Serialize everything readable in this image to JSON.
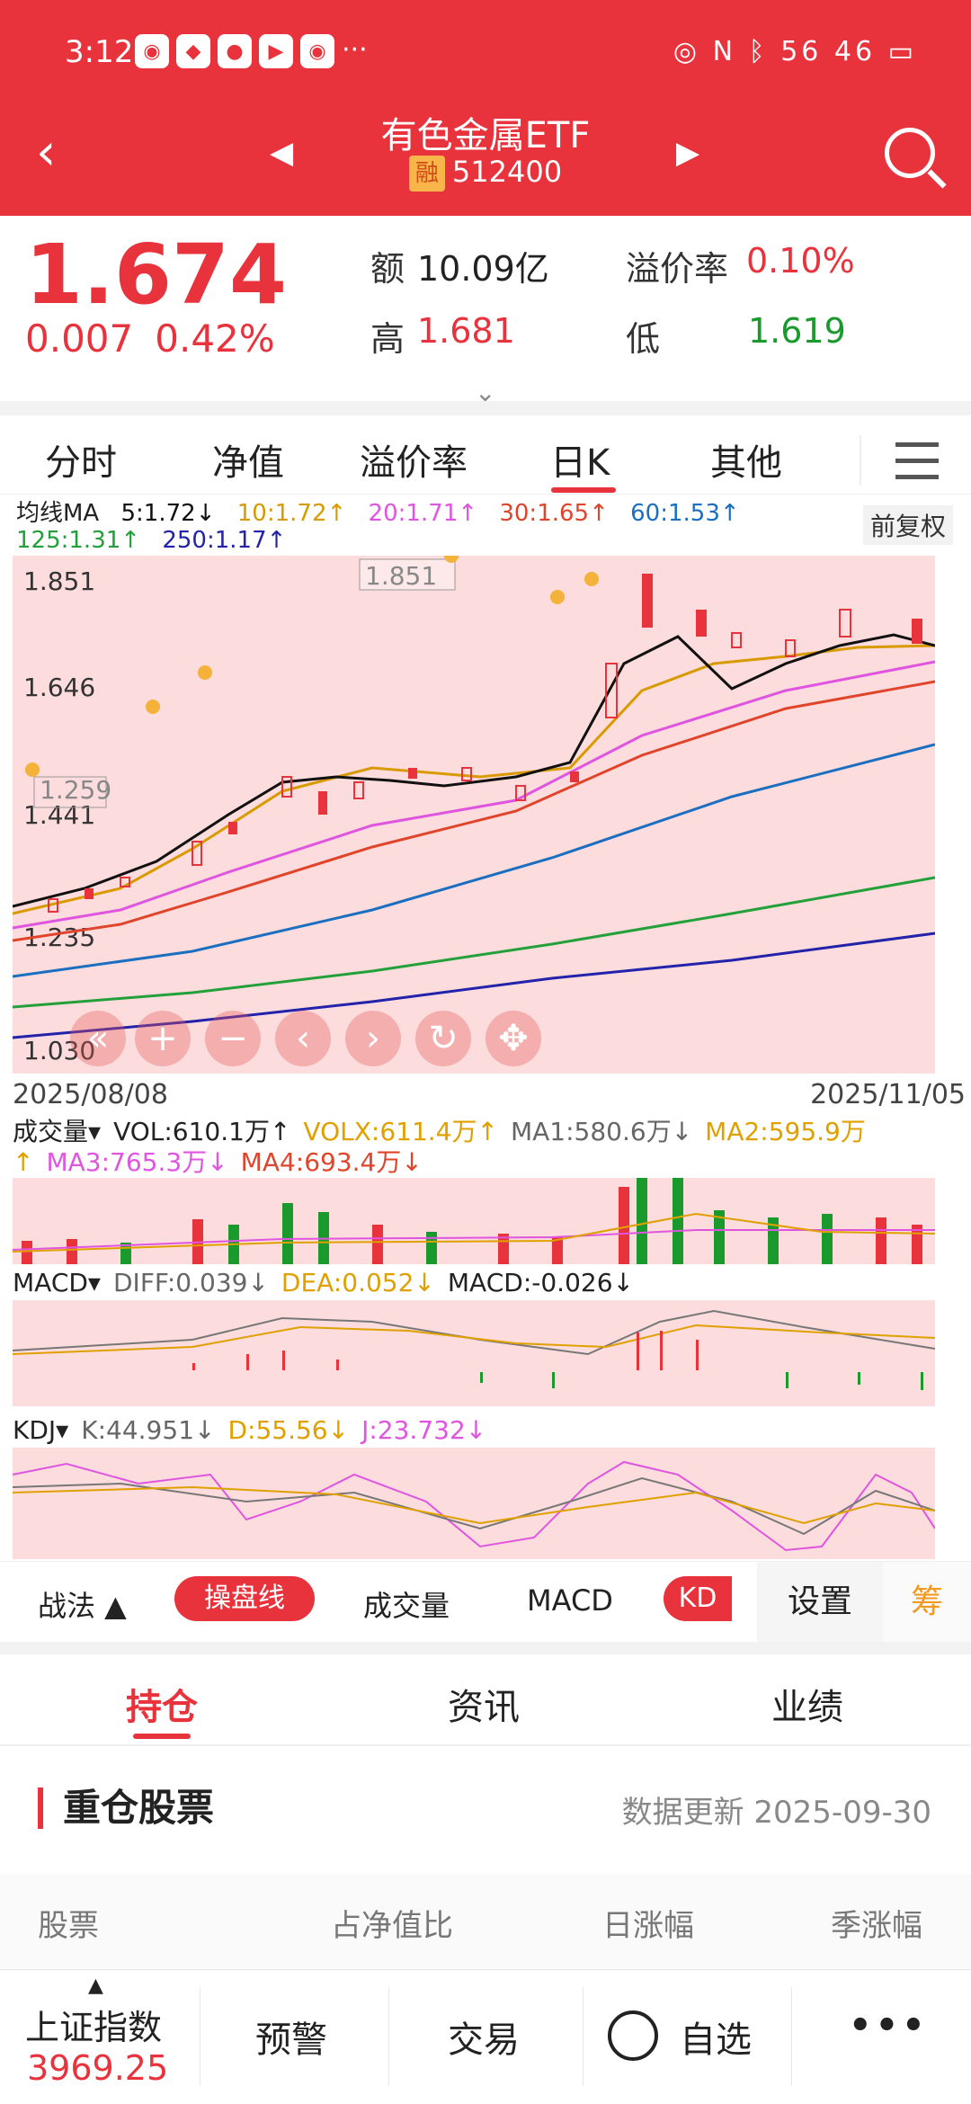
{
  "status": {
    "time": "3:12",
    "right": "56 46",
    "more": "···"
  },
  "header": {
    "title": "有色金属ETF",
    "tag": "融",
    "code": "512400"
  },
  "quote": {
    "price": "1.674",
    "change": "0.007",
    "change_pct": "0.42%",
    "amount_label": "额",
    "amount": "10.09亿",
    "premium_label": "溢价率",
    "premium": "0.10%",
    "high_label": "高",
    "high": "1.681",
    "low_label": "低",
    "low": "1.619"
  },
  "chart_tabs": [
    "分时",
    "净值",
    "溢价率",
    "日K",
    "其他"
  ],
  "ma_legend": {
    "title": "均线MA",
    "items": [
      {
        "text": "5:1.72↓",
        "color": "#111111"
      },
      {
        "text": "10:1.72↑",
        "color": "#d99a00"
      },
      {
        "text": "20:1.71↑",
        "color": "#e055e0"
      },
      {
        "text": "30:1.65↑",
        "color": "#e0452c"
      },
      {
        "text": "60:1.53↑",
        "color": "#1b6fc1"
      },
      {
        "text": "125:1.31↑",
        "color": "#22a03a"
      },
      {
        "text": "250:1.17↑",
        "color": "#2222aa"
      }
    ],
    "adjust_label": "前复权"
  },
  "kchart": {
    "y_labels": [
      "1.851",
      "1.646",
      "1.441",
      "1.235",
      "1.030"
    ],
    "max_marker": "1.851",
    "min_marker": "1.259",
    "date_start": "2025/08/08",
    "date_end": "2025/11/05"
  },
  "volume": {
    "header": [
      {
        "text": "成交量▾",
        "color": "#222222"
      },
      {
        "text": "VOL:610.1万↑",
        "color": "#222222"
      },
      {
        "text": "VOLX:611.4万↑",
        "color": "#e0a000"
      },
      {
        "text": "MA1:580.6万↓",
        "color": "#666666"
      },
      {
        "text": "MA2:595.9万↑",
        "color": "#e0a000"
      },
      {
        "text": "MA3:765.3万↓",
        "color": "#e055e0"
      },
      {
        "text": "MA4:693.4万↓",
        "color": "#e0452c"
      }
    ]
  },
  "macd": {
    "header": [
      {
        "text": "MACD▾",
        "color": "#222222"
      },
      {
        "text": "DIFF:0.039↓",
        "color": "#666666"
      },
      {
        "text": "DEA:0.052↓",
        "color": "#e0a000"
      },
      {
        "text": "MACD:-0.026↓",
        "color": "#222222"
      }
    ]
  },
  "kdj": {
    "header": [
      {
        "text": "KDJ▾",
        "color": "#222222"
      },
      {
        "text": "K:44.951↓",
        "color": "#666666"
      },
      {
        "text": "D:55.56↓",
        "color": "#e0a000"
      },
      {
        "text": "J:23.732↓",
        "color": "#e055e0"
      }
    ]
  },
  "indicator_bar": {
    "zhanfa": "战法 ▲",
    "caopan": "操盘线",
    "volume": "成交量",
    "macd": "MACD",
    "kd": "KD",
    "settings": "设置",
    "chou": "筹"
  },
  "bottom_tabs": [
    "持仓",
    "资讯",
    "业绩"
  ],
  "holdings": {
    "title": "重仓股票",
    "updated": "数据更新 2025-09-30",
    "columns": [
      "股票",
      "占净值比",
      "日涨幅",
      "季涨幅"
    ]
  },
  "footer": {
    "index_name": "上证指数",
    "index_value": "3969.25",
    "alert": "预警",
    "trade": "交易",
    "watchlist": "自选"
  }
}
